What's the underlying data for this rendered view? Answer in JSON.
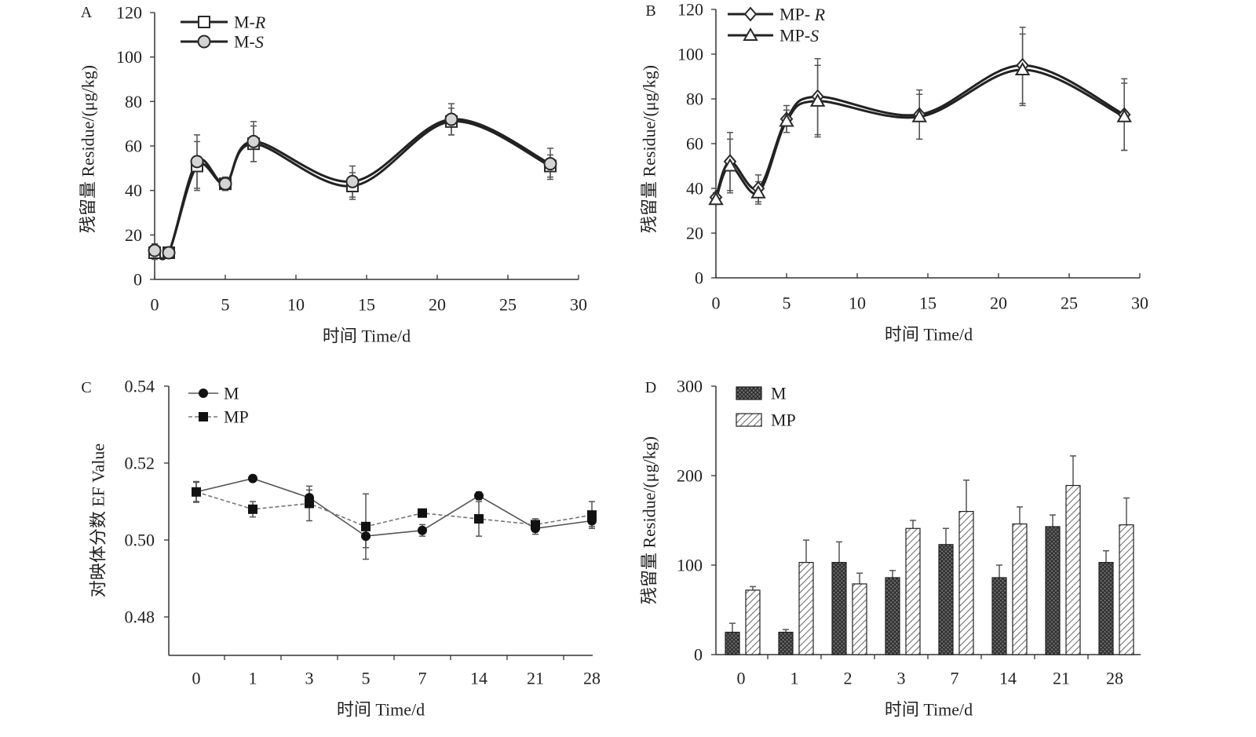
{
  "chart_data": [
    {
      "panel": "A",
      "type": "line",
      "xlabel": "时间 Time/d",
      "ylabel": "残留量 Residue/(μg/kg)",
      "xlim": [
        0,
        30
      ],
      "ylim": [
        0,
        120
      ],
      "x_ticks": [
        "0",
        "5",
        "10",
        "15",
        "20",
        "25",
        "30"
      ],
      "y_ticks": [
        "0",
        "20",
        "40",
        "60",
        "80",
        "100",
        "120"
      ],
      "grid": false,
      "legend": "top-left",
      "x": [
        0,
        1,
        3,
        5,
        7,
        14,
        21,
        28
      ],
      "series": [
        {
          "name": "M-R",
          "marker": "square",
          "line": "smooth",
          "color": "#222222",
          "values": [
            12,
            12,
            51,
            43,
            61,
            42,
            71,
            51
          ],
          "errors": [
            3,
            1,
            11,
            3,
            8,
            6,
            6,
            5
          ]
        },
        {
          "name": "M-S",
          "marker": "circle",
          "line": "smooth",
          "color": "#222222",
          "values": [
            13,
            12,
            53,
            43,
            62,
            44,
            72,
            52
          ],
          "errors": [
            3,
            1,
            12,
            3,
            9,
            7,
            7,
            7
          ]
        }
      ]
    },
    {
      "panel": "B",
      "type": "line",
      "xlabel": "时间 Time/d",
      "ylabel": "残留量 Residue/(μg/kg)",
      "xlim": [
        0,
        30
      ],
      "ylim": [
        0,
        120
      ],
      "x_ticks": [
        "0",
        "5",
        "10",
        "15",
        "20",
        "25",
        "30"
      ],
      "y_ticks": [
        "0",
        "20",
        "40",
        "60",
        "80",
        "100",
        "120"
      ],
      "grid": false,
      "legend": "top-left",
      "x": [
        0,
        1,
        3,
        5,
        7.2,
        14.4,
        21.7,
        28.9
      ],
      "series": [
        {
          "name": "MP- R",
          "marker": "diamond",
          "line": "smooth",
          "color": "#222222",
          "values": [
            36,
            52,
            40,
            71,
            81,
            73,
            95,
            73
          ],
          "errors": [
            2,
            13,
            6,
            6,
            17,
            11,
            17,
            16
          ]
        },
        {
          "name": "MP-S",
          "marker": "triangle",
          "line": "smooth",
          "color": "#222222",
          "values": [
            35,
            50,
            38,
            70,
            79,
            72,
            93,
            72
          ],
          "errors": [
            2,
            12,
            5,
            5,
            16,
            10,
            16,
            15
          ]
        }
      ]
    },
    {
      "panel": "C",
      "type": "line",
      "xlabel": "时间 Time/d",
      "ylabel": "对映体分数 EF Value",
      "ylim": [
        0.47,
        0.54
      ],
      "y_ticks": [
        "0.48",
        "0.50",
        "0.52",
        "0.54"
      ],
      "categories": [
        "0",
        "1",
        "3",
        "5",
        "7",
        "14",
        "21",
        "28"
      ],
      "grid": false,
      "legend": "top-left",
      "series": [
        {
          "name": "M",
          "marker": "filled-circle",
          "line": "solid",
          "color": "#555555",
          "values": [
            0.5125,
            0.516,
            0.511,
            0.501,
            0.5025,
            0.5115,
            0.503,
            0.505
          ],
          "errors": [
            0.0027,
            0.0005,
            0.002,
            0.003,
            0.0015,
            0.001,
            0.0015,
            0.0015
          ]
        },
        {
          "name": "MP",
          "marker": "filled-square",
          "line": "dashed",
          "color": "#777777",
          "values": [
            0.5125,
            0.508,
            0.5095,
            0.5035,
            0.507,
            0.5055,
            0.504,
            0.5065
          ],
          "errors": [
            0.0025,
            0.002,
            0.0045,
            0.0085,
            0.001,
            0.0045,
            0.0015,
            0.0035
          ]
        }
      ]
    },
    {
      "panel": "D",
      "type": "bar",
      "xlabel": "时间 Time/d",
      "ylabel": "残留量 Residue/(μg/kg)",
      "ylim": [
        0,
        300
      ],
      "y_ticks": [
        "0",
        "100",
        "200",
        "300"
      ],
      "categories": [
        "0",
        "1",
        "2",
        "3",
        "7",
        "14",
        "21",
        "28"
      ],
      "grid": false,
      "legend": "top-left",
      "series": [
        {
          "name": "M",
          "pattern": "crosshatch",
          "values": [
            25,
            25,
            103,
            86,
            123,
            86,
            143,
            103
          ],
          "errors": [
            10,
            3,
            23,
            8,
            18,
            14,
            13,
            13
          ]
        },
        {
          "name": "MP",
          "pattern": "diagonal-hatch",
          "values": [
            72,
            103,
            79,
            141,
            160,
            146,
            189,
            145
          ],
          "errors": [
            4,
            25,
            12,
            9,
            35,
            19,
            33,
            30
          ]
        }
      ]
    }
  ]
}
